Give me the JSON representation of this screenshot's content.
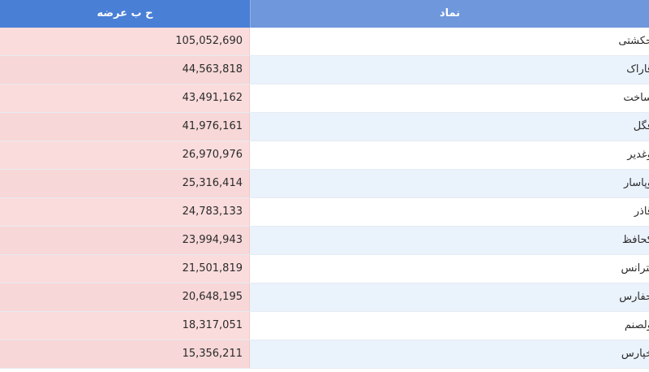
{
  "header": {
    "volume_label": "ح ب عرضه",
    "symbol_label": "نماد"
  },
  "rows": [
    {
      "symbol": "حکشتی",
      "volume": "105,052,690"
    },
    {
      "symbol": "قاراک",
      "volume": "44,563,818"
    },
    {
      "symbol": "ساخت",
      "volume": "43,491,162"
    },
    {
      "symbol": "فگل",
      "volume": "41,976,161"
    },
    {
      "symbol": "وغدیر",
      "volume": "26,970,976"
    },
    {
      "symbol": "وپاسار",
      "volume": "25,316,414"
    },
    {
      "symbol": "قاذر",
      "volume": "24,783,133"
    },
    {
      "symbol": "کحافظ",
      "volume": "23,994,943"
    },
    {
      "symbol": "بترانس",
      "volume": "21,501,819"
    },
    {
      "symbol": "حفارس",
      "volume": "20,648,195"
    },
    {
      "symbol": "ولصنم",
      "volume": "18,317,051"
    },
    {
      "symbol": "خپارس",
      "volume": "15,356,211"
    }
  ],
  "colors": {
    "header_volume_bg": "#4a7fd6",
    "header_symbol_bg": "#6e97dc",
    "volume_cell_bg": "#fbdcdc",
    "symbol_alt_bg": "#eaf2fc"
  }
}
